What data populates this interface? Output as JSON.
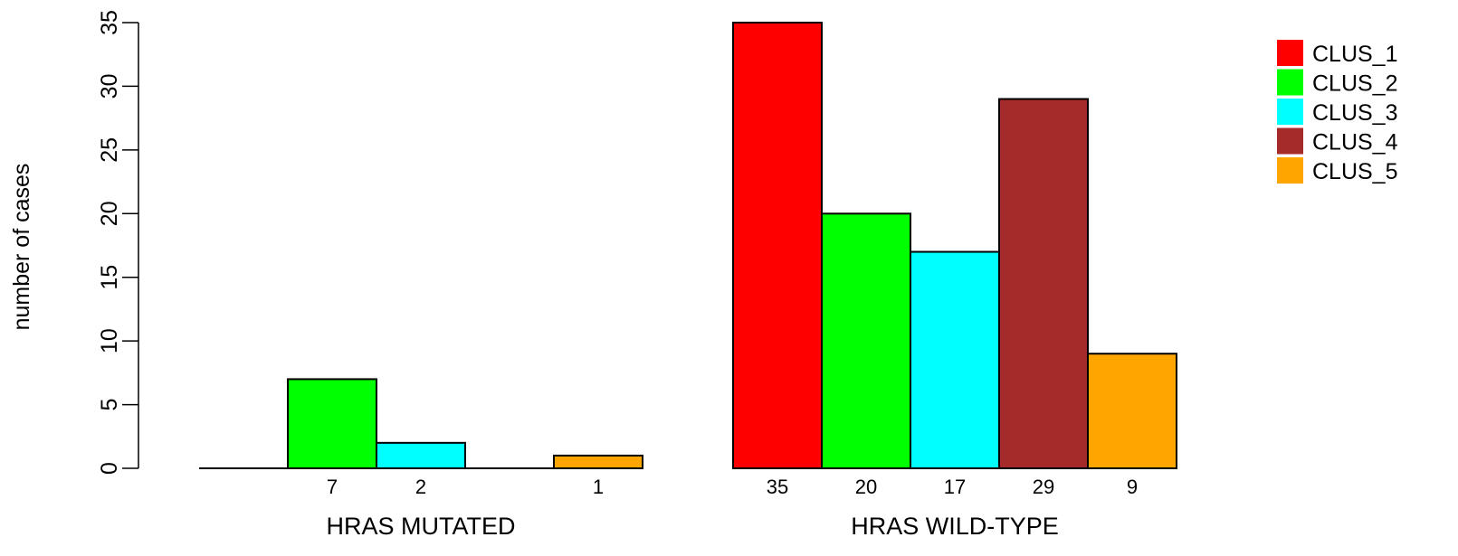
{
  "chart_data": {
    "type": "bar",
    "ylabel": "number of cases",
    "ylim": [
      0,
      35
    ],
    "yticks": [
      0,
      5,
      10,
      15,
      20,
      25,
      30,
      35
    ],
    "grid": false,
    "legend_position": "top-right",
    "series": [
      {
        "name": "CLUS_1",
        "color": "#FF0000"
      },
      {
        "name": "CLUS_2",
        "color": "#00FF00"
      },
      {
        "name": "CLUS_3",
        "color": "#00FFFF"
      },
      {
        "name": "CLUS_4",
        "color": "#A52A2A"
      },
      {
        "name": "CLUS_5",
        "color": "#FFA500"
      }
    ],
    "groups": [
      {
        "label": "HRAS MUTATED",
        "values": [
          0,
          7,
          2,
          0,
          1
        ],
        "value_labels": [
          "",
          "7",
          "2",
          "",
          "1"
        ]
      },
      {
        "label": "HRAS WILD-TYPE",
        "values": [
          35,
          20,
          17,
          29,
          9
        ],
        "value_labels": [
          "35",
          "20",
          "17",
          "29",
          "9"
        ]
      }
    ]
  }
}
